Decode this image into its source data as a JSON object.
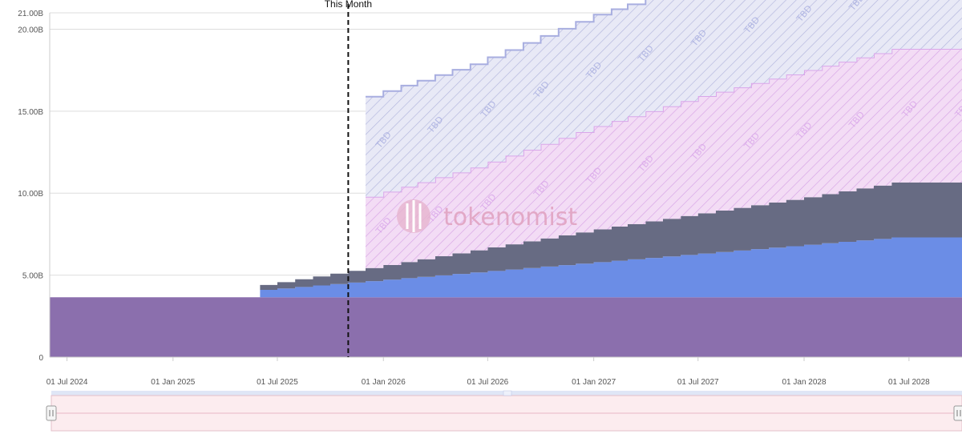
{
  "chart_data": {
    "type": "area",
    "stacked": true,
    "step": true,
    "title": "",
    "xlabel": "",
    "ylabel": "",
    "ylim": [
      0,
      21
    ],
    "y_unit": "B",
    "grid": true,
    "x_ticks": [
      "01 Jul 2024",
      "01 Jan 2025",
      "01 Jul 2025",
      "01 Jan 2026",
      "01 Jul 2026",
      "01 Jan 2027",
      "01 Jul 2027",
      "01 Jan 2028",
      "01 Jul 2028"
    ],
    "y_ticks": [
      {
        "value": 0,
        "label": "0"
      },
      {
        "value": 5,
        "label": "5.00B"
      },
      {
        "value": 10,
        "label": "10.00B"
      },
      {
        "value": 15,
        "label": "15.00B"
      },
      {
        "value": 20,
        "label": "20.00B"
      },
      {
        "value": 21,
        "label": "21.00B"
      }
    ],
    "x_range": [
      "2024-06-01",
      "2028-10-01"
    ],
    "this_month": {
      "date": "2025-11-01",
      "label": "This Month"
    },
    "series": [
      {
        "color": "#8b6fad",
        "pattern": false,
        "points": [
          {
            "x": "2024-06-01",
            "y": 3.65
          },
          {
            "x": "2028-10-01",
            "y": 3.65
          }
        ]
      },
      {
        "color": "#6b8de6",
        "pattern": false,
        "points": [
          {
            "x": "2025-06-01",
            "y": 0.45
          },
          {
            "x": "2028-06-01",
            "y": 3.65
          },
          {
            "x": "2028-10-01",
            "y": 3.65
          }
        ]
      },
      {
        "color": "#676b83",
        "pattern": false,
        "points": [
          {
            "x": "2025-06-01",
            "y": 0.3
          },
          {
            "x": "2025-12-01",
            "y": 0.8
          },
          {
            "x": "2026-06-01",
            "y": 1.35
          },
          {
            "x": "2027-01-01",
            "y": 2.0
          },
          {
            "x": "2027-07-01",
            "y": 2.45
          },
          {
            "x": "2028-01-01",
            "y": 2.9
          },
          {
            "x": "2028-06-01",
            "y": 3.35
          },
          {
            "x": "2028-10-01",
            "y": 3.35
          }
        ]
      },
      {
        "color": "#d9a6ea",
        "pattern": true,
        "label": "TBD",
        "points": [
          {
            "x": "2025-12-01",
            "y": 4.35
          },
          {
            "x": "2026-06-01",
            "y": 5.05
          },
          {
            "x": "2027-01-01",
            "y": 6.3
          },
          {
            "x": "2027-07-01",
            "y": 7.15
          },
          {
            "x": "2028-01-01",
            "y": 7.75
          },
          {
            "x": "2028-06-01",
            "y": 8.15
          },
          {
            "x": "2028-10-01",
            "y": 8.15
          }
        ]
      },
      {
        "color": "#a8aee0",
        "pattern": true,
        "label": "TBD",
        "points": [
          {
            "x": "2025-12-01",
            "y": 6.1
          },
          {
            "x": "2026-06-01",
            "y": 6.3
          },
          {
            "x": "2027-01-01",
            "y": 6.8
          },
          {
            "x": "2027-07-01",
            "y": 6.9
          },
          {
            "x": "2028-01-01",
            "y": 6.55
          },
          {
            "x": "2028-06-01",
            "y": 6.2
          },
          {
            "x": "2028-10-01",
            "y": 6.05
          }
        ]
      }
    ],
    "watermark": "tokenomist"
  },
  "colors": {
    "grid": "#dddddd",
    "axis": "#cccccc",
    "marker_line": "#111111",
    "navigator_fill": "#fcecef",
    "navigator_border": "#e3bfc9",
    "navigator_top": "#dfe6f6",
    "watermark": "#e2a8c6"
  },
  "navigator": {
    "handle_left_icon": "drag-handle-icon",
    "handle_right_icon": "drag-handle-icon"
  }
}
